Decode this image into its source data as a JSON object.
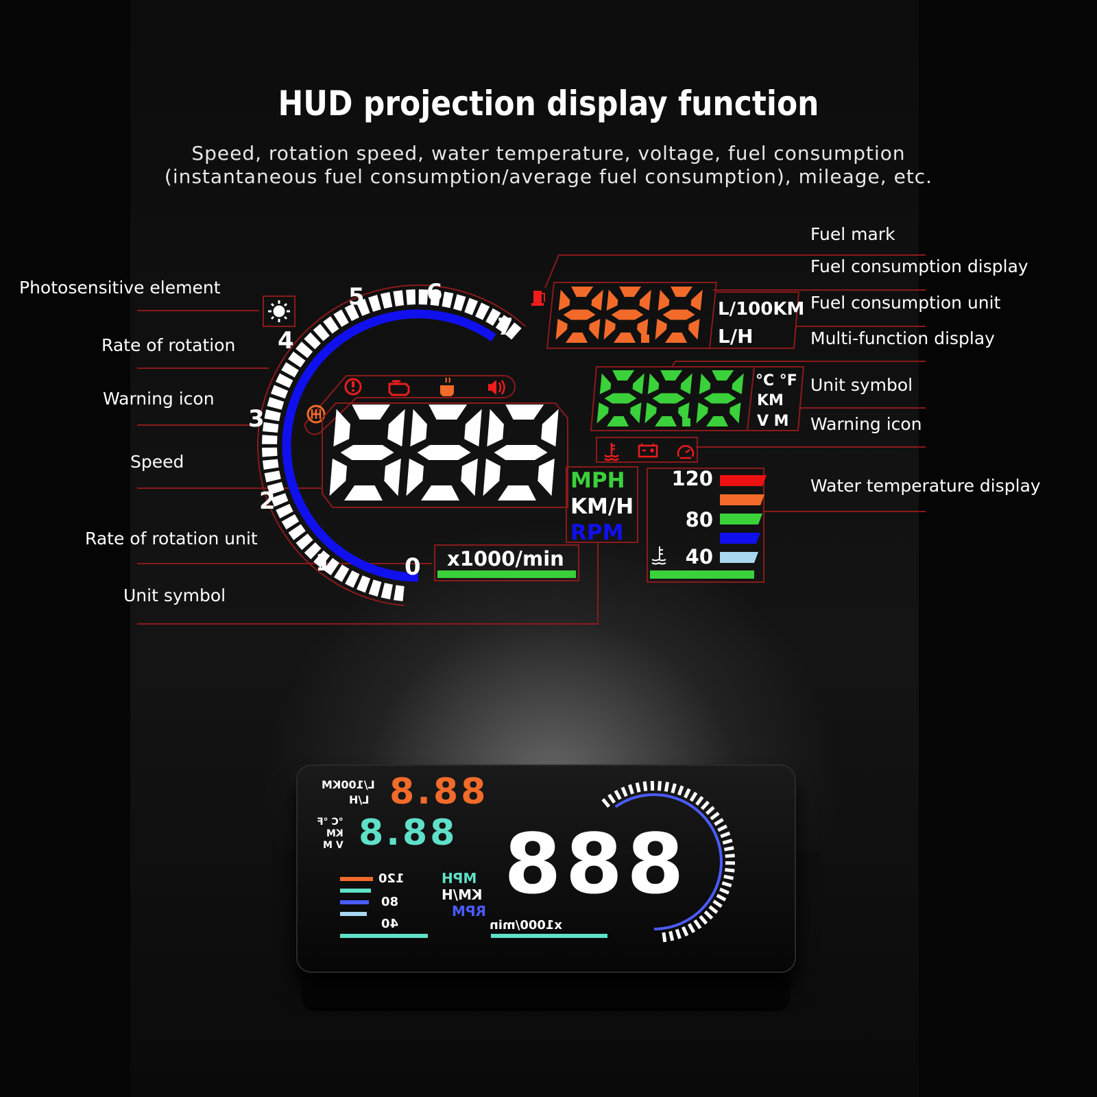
{
  "title": "HUD projection display function",
  "subtitle": [
    "Speed, rotation speed, water temperature, voltage, fuel consumption",
    "(instantaneous fuel consumption/average fuel consumption), mileage, etc."
  ],
  "labels_left": [
    "Photosensitive element",
    "Rate of rotation",
    "Warning icon",
    "Speed",
    "Rate of rotation unit",
    "Unit symbol"
  ],
  "labels_right": [
    "Fuel mark",
    "Fuel consumption display",
    "Fuel consumption unit",
    "Multi-function display",
    "Unit symbol",
    "Warning icon",
    "Water temperature display"
  ],
  "gauge": {
    "ticks": [
      "0",
      "1",
      "2",
      "3",
      "4",
      "5",
      "6",
      "7"
    ],
    "unit": "x1000/min"
  },
  "speed_units": [
    "MPH",
    "KM/H",
    "RPM"
  ],
  "fuel_units": [
    "L/100KM",
    "L/H"
  ],
  "multi_units": [
    "°C °F",
    "KM",
    "V M"
  ],
  "water_temp": {
    "labels": [
      "120",
      "80",
      "40"
    ]
  },
  "warning_icons": [
    "exclamation-icon",
    "engine-icon",
    "coffee-icon",
    "speaker-icon",
    "gear-shift-icon"
  ],
  "status_icons": [
    "coolant-temp-icon",
    "battery-icon",
    "speedometer-icon"
  ],
  "colors": {
    "speed": "#ffffff",
    "fuel": "#f26b2a",
    "multi": "#3ad13a",
    "rpm_arc": "#1010ee",
    "leader": "#8b1a1a",
    "warning": "#ee1c1c",
    "temp_bars": [
      "#ee1111",
      "#f26b2a",
      "#3ad13a",
      "#1010ee",
      "#a8d8f0"
    ]
  }
}
